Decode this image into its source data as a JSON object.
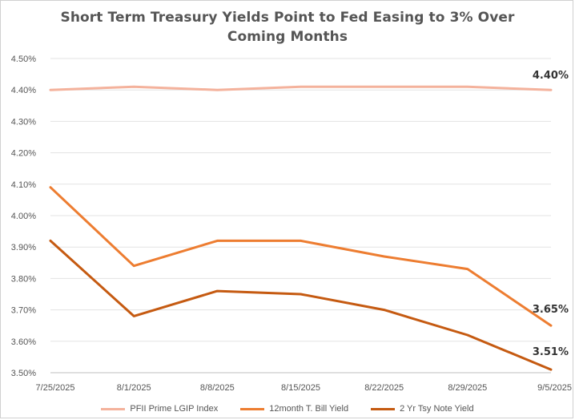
{
  "chart_data": {
    "type": "line",
    "title_line1": "Short Term Treasury Yields Point to  Fed Easing to 3% Over",
    "title_line2": "Coming Months",
    "categories": [
      "7/25/2025",
      "8/1/2025",
      "8/8/2025",
      "8/15/2025",
      "8/22/2025",
      "8/29/2025",
      "9/5/2025"
    ],
    "ylim": [
      3.5,
      4.5
    ],
    "y_ticks": [
      "3.50%",
      "3.60%",
      "3.70%",
      "3.80%",
      "3.90%",
      "4.00%",
      "4.10%",
      "4.20%",
      "4.30%",
      "4.40%",
      "4.50%"
    ],
    "grid": true,
    "legend_position": "bottom",
    "series": [
      {
        "name": "PFII Prime LGIP Index",
        "color": "#F4B29C",
        "values": [
          4.4,
          4.41,
          4.4,
          4.41,
          4.41,
          4.41,
          4.4
        ],
        "end_label": "4.40%"
      },
      {
        "name": "12month T. Bill Yield",
        "color": "#ED7D31",
        "values": [
          4.09,
          3.84,
          3.92,
          3.92,
          3.87,
          3.83,
          3.65
        ],
        "end_label": "3.65%"
      },
      {
        "name": "2 Yr Tsy Note Yield",
        "color": "#C55A11",
        "values": [
          3.92,
          3.68,
          3.76,
          3.75,
          3.7,
          3.62,
          3.51
        ],
        "end_label": "3.51%"
      }
    ]
  }
}
